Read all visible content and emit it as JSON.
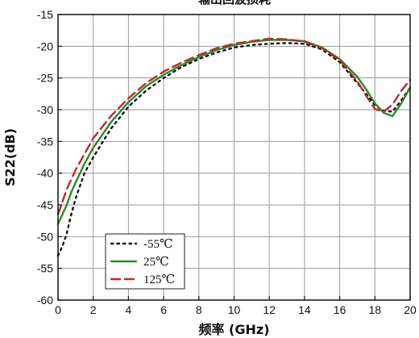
{
  "chart_data": {
    "type": "line",
    "title": "输出回波损耗",
    "xlabel": "频率 (GHz)",
    "ylabel": "S22(dB)",
    "xlim": [
      0,
      20
    ],
    "ylim": [
      -60,
      -15
    ],
    "xticks": [
      "0",
      "2",
      "4",
      "6",
      "8",
      "10",
      "12",
      "14",
      "16",
      "18",
      "20"
    ],
    "yticks": [
      "-15",
      "-20",
      "-25",
      "-30",
      "-35",
      "-40",
      "-45",
      "-50",
      "-55",
      "-60"
    ],
    "grid": true,
    "legend_position": "bottom-left",
    "x": [
      0,
      0.25,
      0.5,
      0.75,
      1,
      1.5,
      2,
      3,
      4,
      5,
      6,
      7,
      8,
      9,
      10,
      11,
      12,
      13,
      14,
      15,
      16,
      17,
      17.5,
      18,
      18.5,
      19,
      19.5,
      20
    ],
    "series": [
      {
        "name": "-55℃",
        "color": "#111111",
        "style": "dotted",
        "values": [
          -53,
          -51.5,
          -49.5,
          -46.5,
          -44,
          -40,
          -37.5,
          -33,
          -29.5,
          -27,
          -25,
          -23.3,
          -22,
          -21,
          -20.2,
          -19.8,
          -19.6,
          -19.5,
          -19.6,
          -20.5,
          -22.5,
          -25.8,
          -27.5,
          -29.3,
          -30.2,
          -30.3,
          -28.5,
          -26.5
        ]
      },
      {
        "name": "25℃",
        "color": "#2a8a2a",
        "style": "solid",
        "values": [
          -48,
          -46.5,
          -45,
          -43,
          -41.5,
          -38.5,
          -36,
          -32,
          -28.8,
          -26.3,
          -24.5,
          -23,
          -21.7,
          -20.6,
          -19.8,
          -19.3,
          -19,
          -19,
          -19.2,
          -20.2,
          -22,
          -24.8,
          -26.8,
          -29,
          -30.5,
          -31,
          -29,
          -26.5
        ]
      },
      {
        "name": "125℃",
        "color": "#c0282d",
        "style": "dashed",
        "values": [
          -46.5,
          -44.5,
          -42.5,
          -41,
          -39.5,
          -37,
          -34.5,
          -31,
          -28.2,
          -25.8,
          -24,
          -22.6,
          -21.4,
          -20.3,
          -19.6,
          -19.2,
          -18.8,
          -18.9,
          -19.3,
          -20.3,
          -22.2,
          -25.5,
          -27.8,
          -29.9,
          -30.3,
          -29.2,
          -27,
          -25.3
        ]
      }
    ]
  }
}
